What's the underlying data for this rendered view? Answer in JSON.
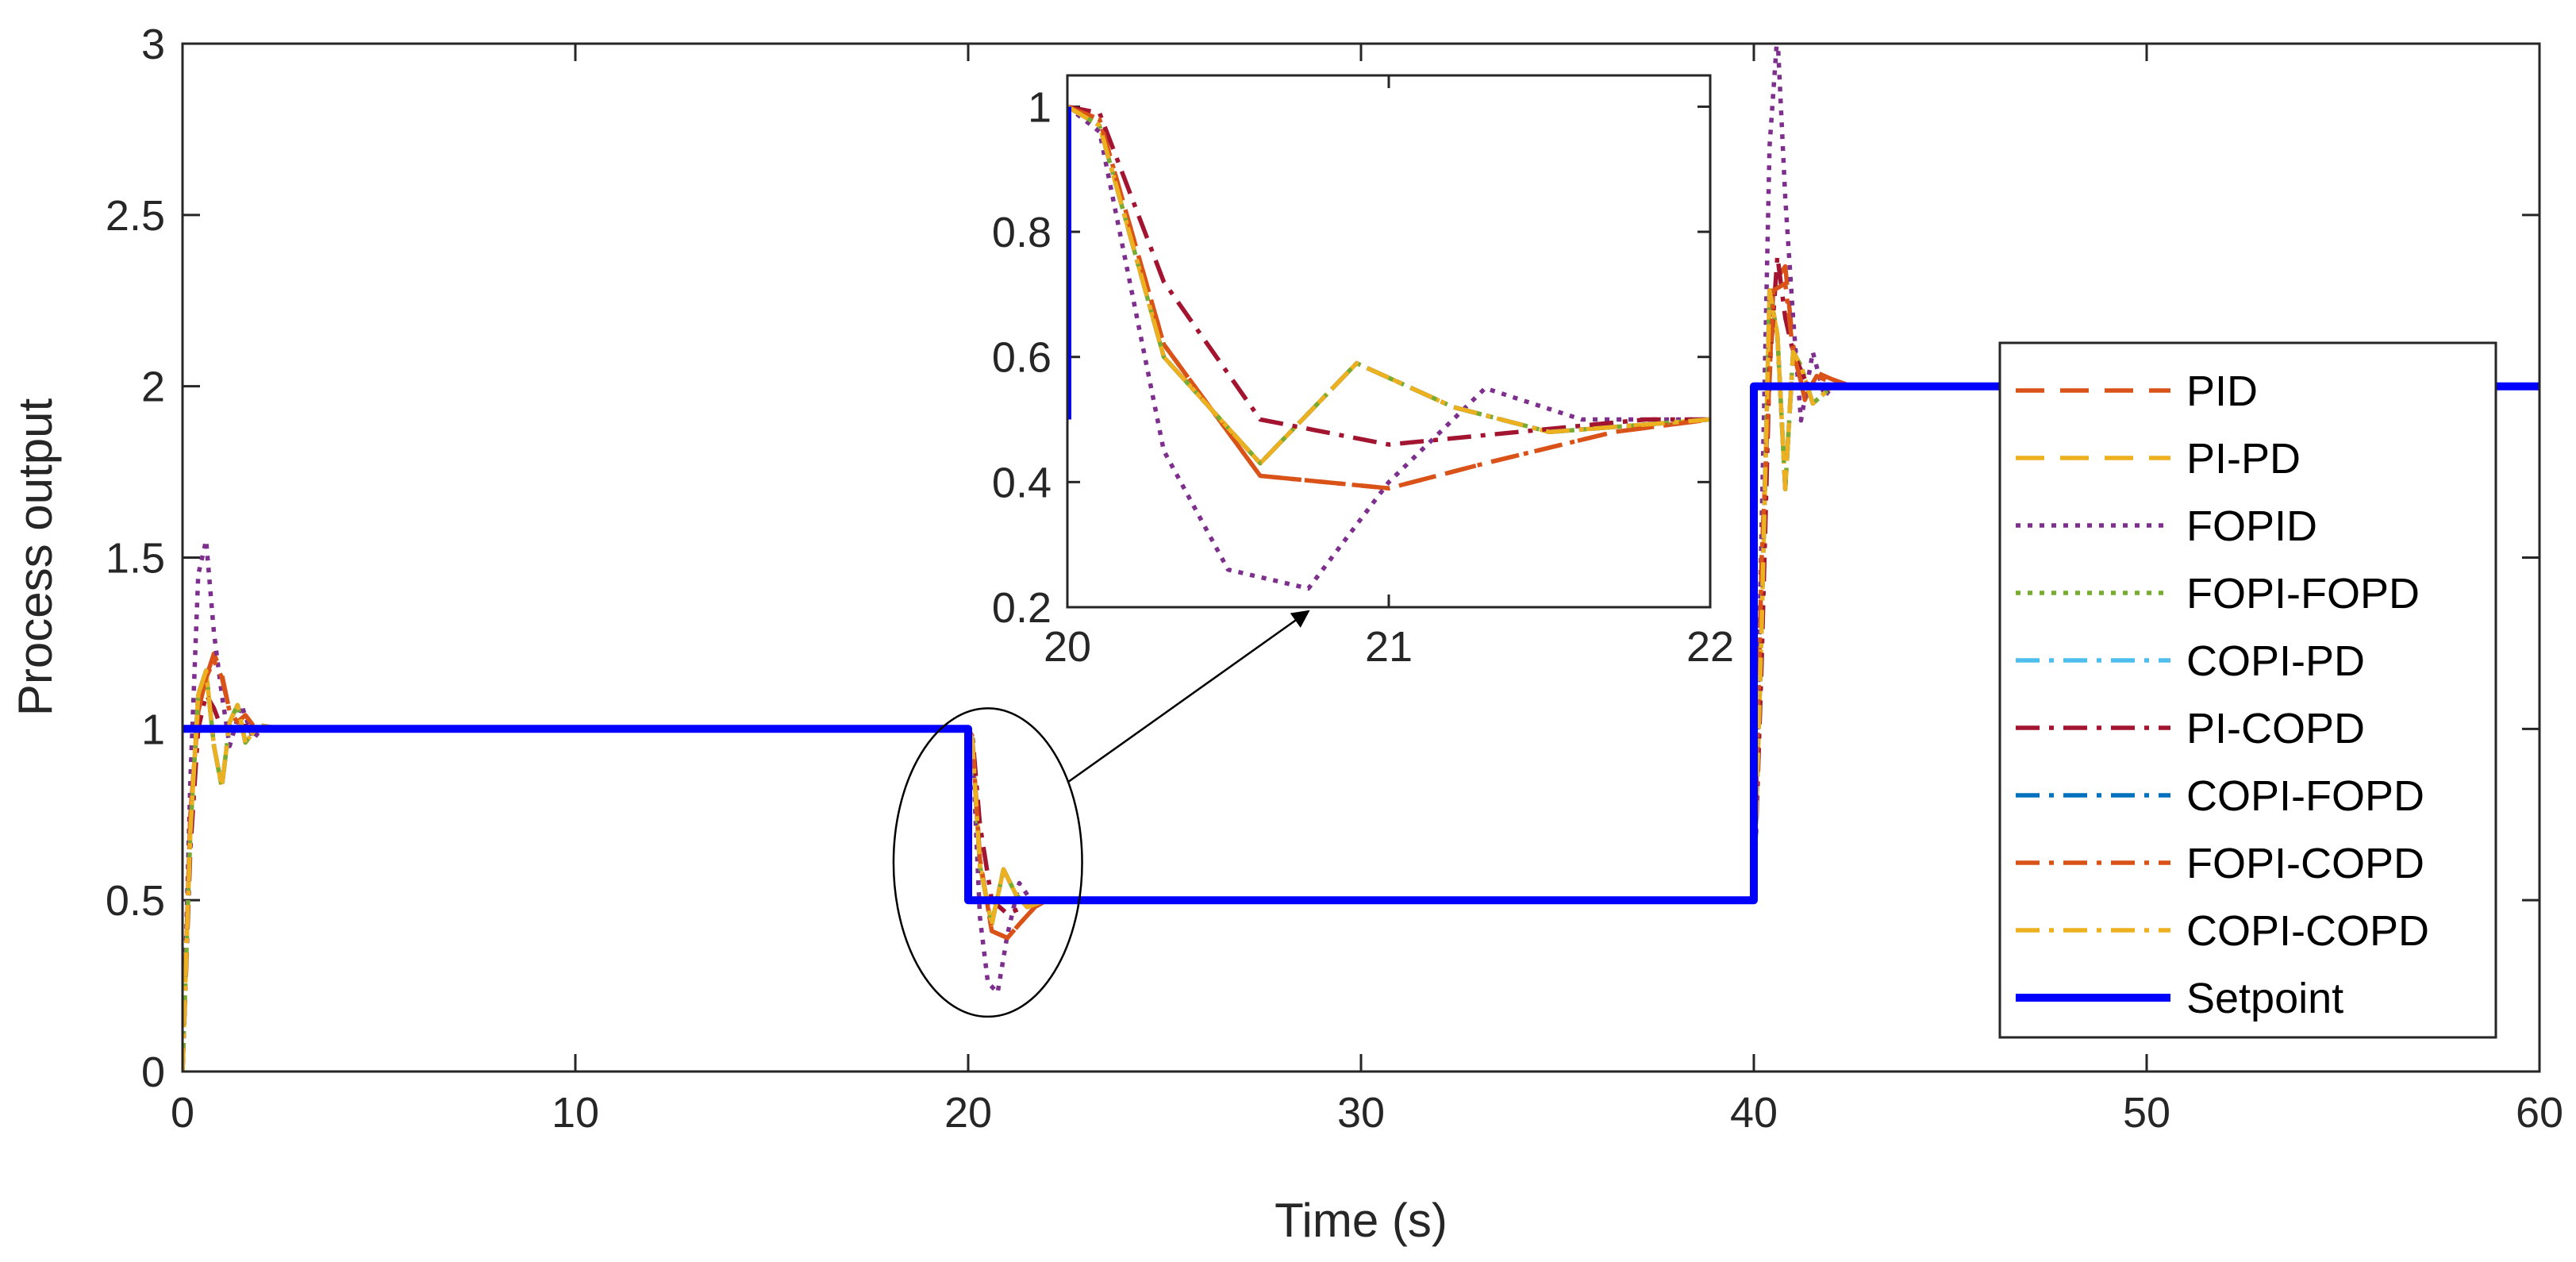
{
  "chart_data": {
    "type": "line",
    "title": "",
    "xlabel": "Time (s)",
    "ylabel": "Process output",
    "xlim": [
      0,
      60
    ],
    "ylim": [
      0,
      3
    ],
    "xticks": [
      "0",
      "10",
      "20",
      "30",
      "40",
      "50",
      "60"
    ],
    "yticks": [
      "0",
      "0.5",
      "1",
      "1.5",
      "2",
      "2.5",
      "3"
    ],
    "legend_position": "right",
    "series": [
      {
        "name": "PID",
        "color": "#D95319",
        "dash": "long-dash",
        "x": [
          0,
          0.2,
          0.4,
          0.6,
          0.8,
          1.0,
          1.2,
          1.4,
          1.6,
          1.8,
          2.0,
          2.5,
          3.0,
          20,
          20.1,
          20.3,
          20.6,
          21.0,
          21.3,
          21.7,
          22.0,
          23.0,
          40,
          40.2,
          40.5,
          40.8,
          41.0,
          41.3,
          41.6,
          42.0,
          42.5,
          43.0,
          60
        ],
        "y": [
          0,
          0.75,
          1.05,
          1.15,
          1.22,
          1.16,
          1.05,
          1.02,
          1.04,
          1.01,
          1.0,
          1.0,
          1.0,
          1.0,
          0.98,
          0.62,
          0.41,
          0.39,
          0.43,
          0.48,
          0.5,
          0.5,
          0.5,
          1.5,
          2.3,
          2.35,
          2.12,
          1.96,
          2.04,
          2.02,
          2.0,
          2.0,
          2.0
        ]
      },
      {
        "name": "PI-PD",
        "color": "#EDB120",
        "dash": "long-dash",
        "x": [
          0,
          0.2,
          0.4,
          0.6,
          0.8,
          1.0,
          1.2,
          1.4,
          1.6,
          1.8,
          2.0,
          2.5,
          3.0,
          20,
          20.1,
          20.3,
          20.6,
          20.9,
          21.2,
          21.5,
          22.0,
          23.0,
          40,
          40.2,
          40.4,
          40.6,
          40.8,
          41.0,
          41.2,
          41.5,
          42.0,
          43.0,
          60
        ],
        "y": [
          0,
          0.7,
          1.1,
          1.17,
          0.95,
          0.83,
          1.02,
          1.07,
          0.96,
          0.99,
          1.01,
          1.0,
          1.0,
          1.0,
          0.97,
          0.6,
          0.43,
          0.59,
          0.52,
          0.48,
          0.5,
          0.5,
          0.5,
          1.3,
          2.28,
          2.15,
          1.7,
          2.1,
          2.06,
          1.95,
          2.0,
          2.0,
          2.0
        ]
      },
      {
        "name": "FOPID",
        "color": "#7E2F8E",
        "dash": "dotted",
        "x": [
          0,
          0.2,
          0.4,
          0.6,
          0.8,
          1.0,
          1.2,
          1.5,
          1.8,
          2.0,
          2.5,
          3.0,
          20,
          20.1,
          20.3,
          20.5,
          20.75,
          21.0,
          21.3,
          21.6,
          22.0,
          23.0,
          40,
          40.2,
          40.4,
          40.6,
          40.8,
          41.0,
          41.2,
          41.5,
          41.8,
          42.0,
          43.0,
          60
        ],
        "y": [
          0,
          0.85,
          1.45,
          1.55,
          1.28,
          1.1,
          0.95,
          1.07,
          0.97,
          1.0,
          1.0,
          1.0,
          1.0,
          0.96,
          0.45,
          0.26,
          0.23,
          0.4,
          0.55,
          0.5,
          0.5,
          0.5,
          0.5,
          1.6,
          2.7,
          3.03,
          2.55,
          2.2,
          1.9,
          2.1,
          1.97,
          2.0,
          2.0,
          2.0
        ]
      },
      {
        "name": "FOPI-FOPD",
        "color": "#77AC30",
        "dash": "dotted",
        "x": [
          0,
          0.2,
          0.4,
          0.6,
          0.8,
          1.0,
          1.2,
          1.4,
          1.6,
          1.8,
          2.0,
          2.5,
          3.0,
          20,
          20.1,
          20.3,
          20.6,
          20.9,
          21.2,
          21.5,
          22.0,
          23.0,
          40,
          40.2,
          40.4,
          40.6,
          40.8,
          41.0,
          41.2,
          41.5,
          42.0,
          43.0,
          60
        ],
        "y": [
          0,
          0.7,
          1.1,
          1.17,
          0.95,
          0.83,
          1.02,
          1.07,
          0.96,
          0.99,
          1.01,
          1.0,
          1.0,
          1.0,
          0.97,
          0.6,
          0.43,
          0.59,
          0.52,
          0.48,
          0.5,
          0.5,
          0.5,
          1.3,
          2.28,
          2.15,
          1.7,
          2.1,
          2.06,
          1.95,
          2.0,
          2.0,
          2.0
        ]
      },
      {
        "name": "COPI-PD",
        "color": "#4DBEEE",
        "dash": "dash-dot",
        "x": [
          0,
          0.2,
          0.4,
          0.6,
          0.8,
          1.0,
          1.2,
          1.4,
          1.6,
          1.8,
          2.0,
          2.5,
          3.0,
          20,
          20.1,
          20.3,
          20.6,
          20.9,
          21.2,
          21.5,
          22.0,
          23.0,
          40,
          40.2,
          40.4,
          40.6,
          40.8,
          41.0,
          41.2,
          41.5,
          42.0,
          43.0,
          60
        ],
        "y": [
          0,
          0.7,
          1.1,
          1.17,
          0.95,
          0.83,
          1.02,
          1.07,
          0.96,
          0.99,
          1.01,
          1.0,
          1.0,
          1.0,
          0.97,
          0.6,
          0.43,
          0.59,
          0.52,
          0.48,
          0.5,
          0.5,
          0.5,
          1.3,
          2.28,
          2.15,
          1.7,
          2.1,
          2.06,
          1.95,
          2.0,
          2.0,
          2.0
        ]
      },
      {
        "name": "PI-COPD",
        "color": "#A2142F",
        "dash": "dash-dot",
        "x": [
          0,
          0.2,
          0.4,
          0.6,
          0.8,
          1.0,
          1.2,
          1.5,
          2.0,
          2.5,
          3.0,
          20,
          20.1,
          20.3,
          20.6,
          21.0,
          21.4,
          21.8,
          22.0,
          23.0,
          40,
          40.2,
          40.4,
          40.6,
          40.8,
          41.0,
          41.3,
          41.6,
          42.0,
          43.0,
          60
        ],
        "y": [
          0,
          0.65,
          1.0,
          1.1,
          1.06,
          1.0,
          0.99,
          1.01,
          1.0,
          1.0,
          1.0,
          1.0,
          0.99,
          0.72,
          0.5,
          0.46,
          0.48,
          0.5,
          0.5,
          0.5,
          0.5,
          1.2,
          2.05,
          2.38,
          2.2,
          2.1,
          2.02,
          2.0,
          2.0,
          2.0,
          2.0
        ]
      },
      {
        "name": "COPI-FOPD",
        "color": "#0072BD",
        "dash": "dash-dot",
        "x": [
          0,
          0.2,
          0.4,
          0.6,
          0.8,
          1.0,
          1.2,
          1.4,
          1.6,
          1.8,
          2.0,
          2.5,
          3.0,
          20,
          20.1,
          20.3,
          20.6,
          20.9,
          21.2,
          21.5,
          22.0,
          23.0,
          40,
          40.2,
          40.4,
          40.6,
          40.8,
          41.0,
          41.2,
          41.5,
          42.0,
          43.0,
          60
        ],
        "y": [
          0,
          0.7,
          1.1,
          1.17,
          0.95,
          0.83,
          1.02,
          1.07,
          0.96,
          0.99,
          1.01,
          1.0,
          1.0,
          1.0,
          0.97,
          0.6,
          0.43,
          0.59,
          0.52,
          0.48,
          0.5,
          0.5,
          0.5,
          1.3,
          2.28,
          2.15,
          1.7,
          2.1,
          2.06,
          1.95,
          2.0,
          2.0,
          2.0
        ]
      },
      {
        "name": "FOPI-COPD",
        "color": "#D95319",
        "dash": "dash-dot",
        "x": [
          0,
          0.2,
          0.4,
          0.6,
          0.8,
          1.0,
          1.2,
          1.4,
          1.6,
          1.8,
          2.0,
          2.5,
          3.0,
          20,
          20.1,
          20.3,
          20.6,
          21.0,
          21.3,
          21.7,
          22.0,
          23.0,
          40,
          40.2,
          40.5,
          40.8,
          41.0,
          41.3,
          41.6,
          42.0,
          42.5,
          43.0,
          60
        ],
        "y": [
          0,
          0.75,
          1.05,
          1.15,
          1.2,
          1.15,
          1.05,
          1.02,
          1.04,
          1.01,
          1.0,
          1.0,
          1.0,
          1.0,
          0.98,
          0.62,
          0.41,
          0.39,
          0.43,
          0.48,
          0.5,
          0.5,
          0.5,
          1.5,
          2.28,
          2.3,
          2.1,
          1.97,
          2.03,
          2.01,
          2.0,
          2.0,
          2.0
        ]
      },
      {
        "name": "COPI-COPD",
        "color": "#EDB120",
        "dash": "dash-dot",
        "x": [
          0,
          0.2,
          0.4,
          0.6,
          0.8,
          1.0,
          1.2,
          1.4,
          1.6,
          1.8,
          2.0,
          2.5,
          3.0,
          20,
          20.1,
          20.3,
          20.6,
          20.9,
          21.2,
          21.5,
          22.0,
          23.0,
          40,
          40.2,
          40.4,
          40.6,
          40.8,
          41.0,
          41.2,
          41.5,
          42.0,
          43.0,
          60
        ],
        "y": [
          0,
          0.7,
          1.1,
          1.17,
          0.95,
          0.83,
          1.02,
          1.07,
          0.96,
          0.99,
          1.01,
          1.0,
          1.0,
          1.0,
          0.97,
          0.6,
          0.43,
          0.59,
          0.52,
          0.48,
          0.5,
          0.5,
          0.5,
          1.3,
          2.28,
          2.15,
          1.7,
          2.1,
          2.06,
          1.95,
          2.0,
          2.0,
          2.0
        ]
      },
      {
        "name": "Setpoint",
        "color": "#0000FF",
        "dash": "solid",
        "x": [
          0,
          20,
          20,
          40,
          40,
          60
        ],
        "y": [
          1,
          1,
          0.5,
          0.5,
          2,
          2
        ]
      }
    ],
    "inset": {
      "xlim": [
        20,
        22
      ],
      "ylim": [
        0.2,
        1.05
      ],
      "xticks": [
        "20",
        "21",
        "22"
      ],
      "yticks": [
        "0.2",
        "0.4",
        "0.6",
        "0.8",
        "1"
      ],
      "zoom_region": {
        "x": [
          18.1,
          22.9
        ],
        "y": [
          0.16,
          1.06
        ]
      }
    }
  }
}
